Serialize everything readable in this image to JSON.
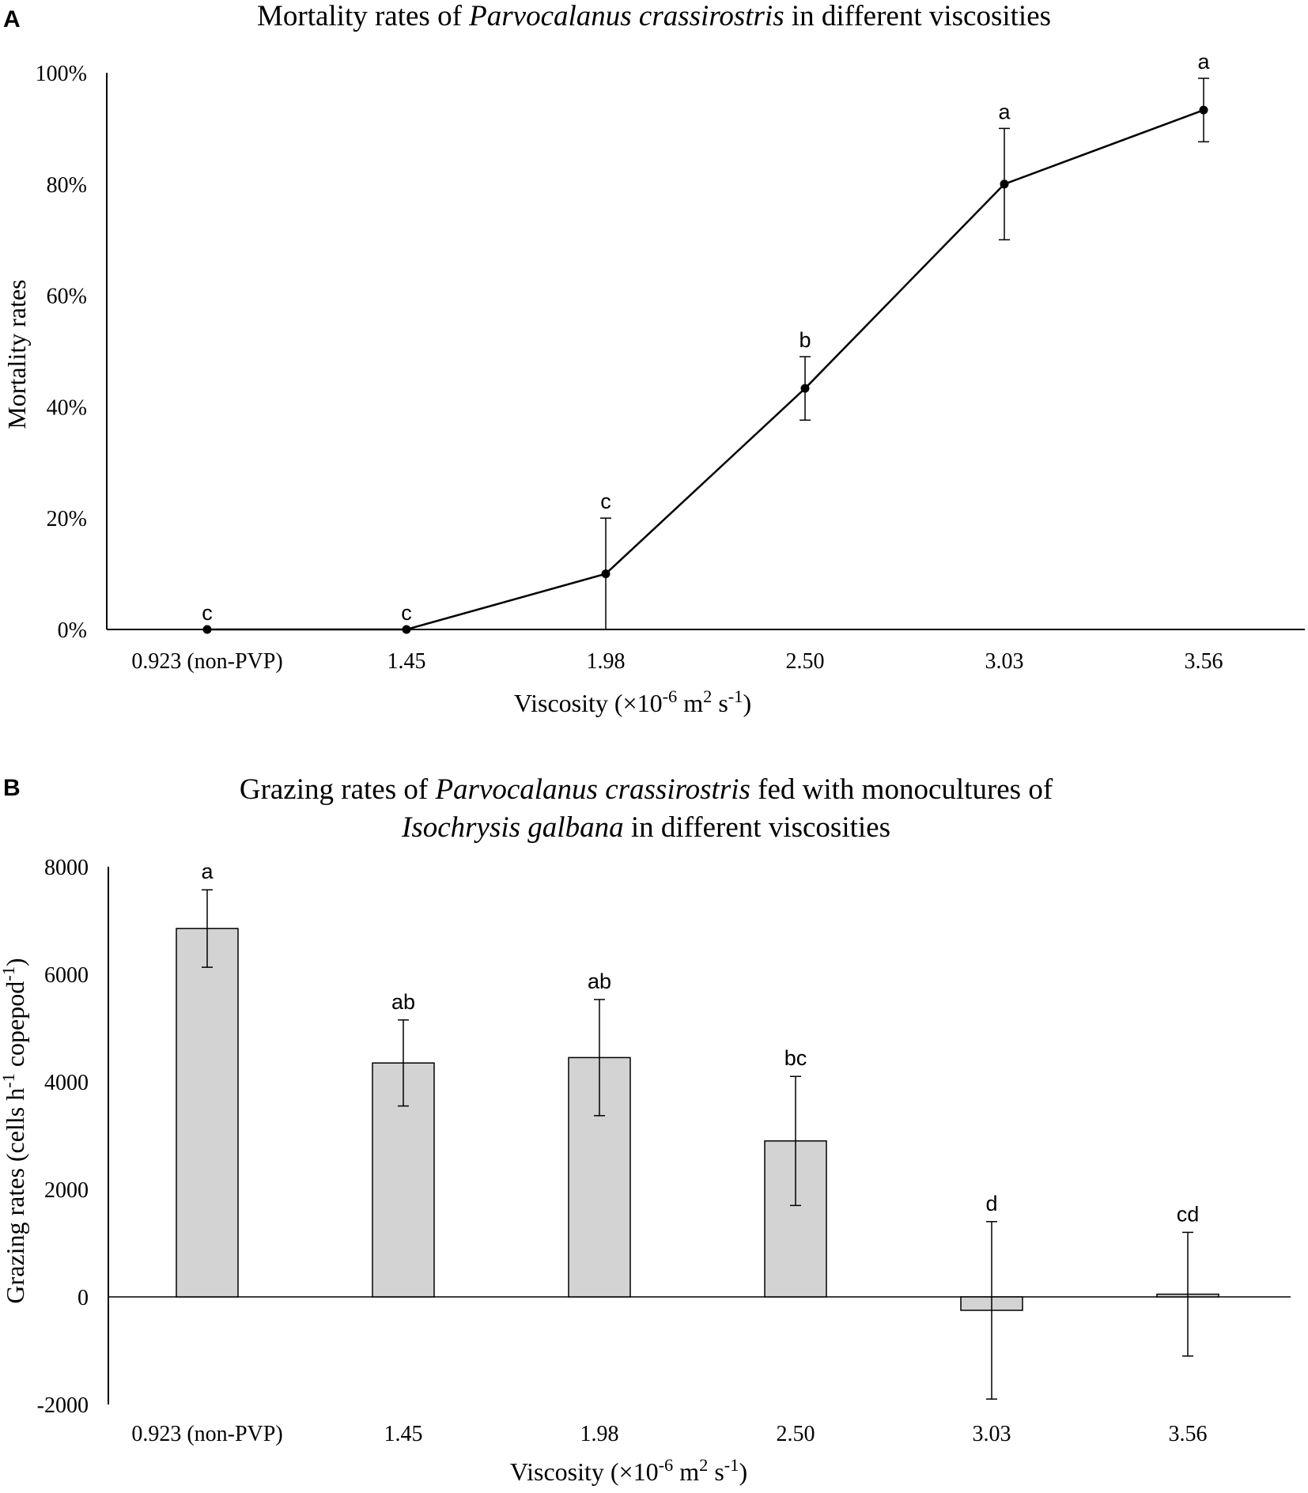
{
  "chart_data": [
    {
      "panel": "A",
      "type": "line",
      "title_parts": [
        {
          "text": "Mortality rates of ",
          "italic": false
        },
        {
          "text": "Parvocalanus crassirostris",
          "italic": true
        },
        {
          "text": " in different viscosities",
          "italic": false
        }
      ],
      "categories": [
        "0.923 (non-PVP)",
        "1.45",
        "1.98",
        "2.50",
        "3.03",
        "3.56"
      ],
      "values": [
        0,
        0,
        10,
        43.3,
        80,
        93.3
      ],
      "error": [
        0,
        0,
        10,
        5.7,
        10,
        5.7
      ],
      "significance": [
        "c",
        "c",
        "c",
        "b",
        "a",
        "a"
      ],
      "ylim": [
        0,
        100
      ],
      "yticks": [
        0,
        20,
        40,
        60,
        80,
        100
      ],
      "ytick_labels": [
        "0%",
        "20%",
        "40%",
        "60%",
        "80%",
        "100%"
      ],
      "ylabel": "Mortality rates",
      "xlabel_parts": [
        {
          "text": "Viscosity (×10",
          "sup": false
        },
        {
          "text": "-6",
          "sup": true
        },
        {
          "text": " m",
          "sup": false
        },
        {
          "text": "2",
          "sup": true
        },
        {
          "text": " s",
          "sup": false
        },
        {
          "text": "-1",
          "sup": true
        },
        {
          "text": ")",
          "sup": false
        }
      ],
      "grid": false,
      "line_color": "#000000"
    },
    {
      "panel": "B",
      "type": "bar",
      "title_lines": [
        [
          {
            "text": "Grazing rates of ",
            "italic": false
          },
          {
            "text": "Parvocalanus crassirostris",
            "italic": true
          },
          {
            "text": " fed with monocultures of",
            "italic": false
          }
        ],
        [
          {
            "text": "Isochrysis galbana",
            "italic": true
          },
          {
            "text": " in different viscosities",
            "italic": false
          }
        ]
      ],
      "categories": [
        "0.923 (non-PVP)",
        "1.45",
        "1.98",
        "2.50",
        "3.03",
        "3.56"
      ],
      "values": [
        6850,
        4350,
        4450,
        2900,
        -250,
        50
      ],
      "error": [
        720,
        800,
        1080,
        1200,
        1650,
        1150
      ],
      "significance": [
        "a",
        "ab",
        "ab",
        "bc",
        "d",
        "cd"
      ],
      "ylim": [
        -2000,
        8000
      ],
      "yticks": [
        -2000,
        0,
        2000,
        4000,
        6000,
        8000
      ],
      "ytick_labels": [
        "-2000",
        "0",
        "2000",
        "4000",
        "6000",
        "8000"
      ],
      "ylabel_parts": [
        {
          "text": "Grazing rates (cells h",
          "sup": false
        },
        {
          "text": "-1",
          "sup": true
        },
        {
          "text": " copepod",
          "sup": false
        },
        {
          "text": "-1",
          "sup": true
        },
        {
          "text": ")",
          "sup": false
        }
      ],
      "xlabel_parts": [
        {
          "text": "Viscosity (×10",
          "sup": false
        },
        {
          "text": "-6",
          "sup": true
        },
        {
          "text": " m",
          "sup": false
        },
        {
          "text": "2",
          "sup": true
        },
        {
          "text": " s",
          "sup": false
        },
        {
          "text": "-1",
          "sup": true
        },
        {
          "text": ")",
          "sup": false
        }
      ],
      "grid": false,
      "bar_color": "#d3d3d3",
      "bar_edge_color": "#000000"
    }
  ]
}
